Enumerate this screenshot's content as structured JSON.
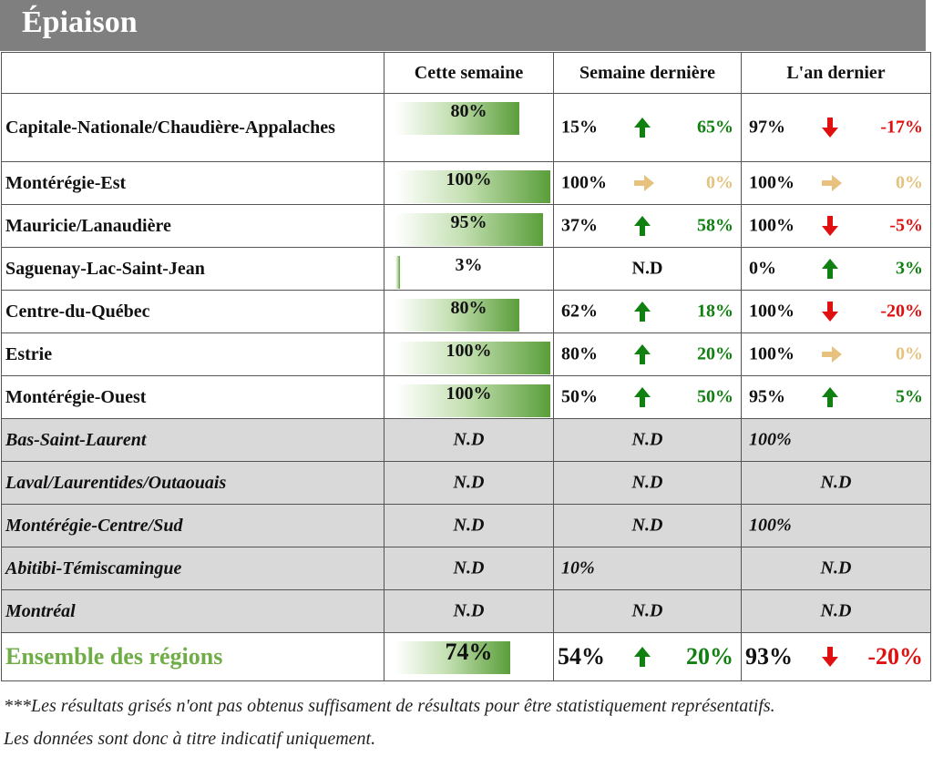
{
  "title": "Épiaison",
  "headers": [
    "Cette semaine",
    "Semaine dernière",
    "L'an dernier"
  ],
  "colors": {
    "up": "#108010",
    "down": "#e01010",
    "neutral": "#e7c27f",
    "total_label": "#70ad47",
    "grey_row": "#d9d9d9"
  },
  "rows": [
    {
      "region": "Capitale-Nationale/Chaudière-Appalaches",
      "cette": "80%",
      "cette_pct": 80,
      "sd_val": "15%",
      "sd_dir": "up",
      "sd_diff": "65%",
      "ad_val": "97%",
      "ad_dir": "down",
      "ad_diff": "-17%"
    },
    {
      "region": "Montérégie-Est",
      "cette": "100%",
      "cette_pct": 100,
      "sd_val": "100%",
      "sd_dir": "neutral",
      "sd_diff": "0%",
      "ad_val": "100%",
      "ad_dir": "neutral",
      "ad_diff": "0%"
    },
    {
      "region": "Mauricie/Lanaudière",
      "cette": "95%",
      "cette_pct": 95,
      "sd_val": "37%",
      "sd_dir": "up",
      "sd_diff": "58%",
      "ad_val": "100%",
      "ad_dir": "down",
      "ad_diff": "-5%"
    },
    {
      "region": "Saguenay-Lac-Saint-Jean",
      "cette": "3%",
      "cette_pct": 3,
      "sd_text": "N.D",
      "ad_val": "0%",
      "ad_dir": "up",
      "ad_diff": "3%"
    },
    {
      "region": "Centre-du-Québec",
      "cette": "80%",
      "cette_pct": 80,
      "sd_val": "62%",
      "sd_dir": "up",
      "sd_diff": "18%",
      "ad_val": "100%",
      "ad_dir": "down",
      "ad_diff": "-20%"
    },
    {
      "region": "Estrie",
      "cette": "100%",
      "cette_pct": 100,
      "sd_val": "80%",
      "sd_dir": "up",
      "sd_diff": "20%",
      "ad_val": "100%",
      "ad_dir": "neutral",
      "ad_diff": "0%"
    },
    {
      "region": "Montérégie-Ouest",
      "cette": "100%",
      "cette_pct": 100,
      "sd_val": "50%",
      "sd_dir": "up",
      "sd_diff": "50%",
      "ad_val": "95%",
      "ad_dir": "up",
      "ad_diff": "5%"
    }
  ],
  "grey_rows": [
    {
      "region": "Bas-Saint-Laurent",
      "cette": "N.D",
      "sd": "N.D",
      "sd_align": "center",
      "ad": "100%",
      "ad_align": "left"
    },
    {
      "region": "Laval/Laurentides/Outaouais",
      "cette": "N.D",
      "sd": "N.D",
      "sd_align": "center",
      "ad": "N.D",
      "ad_align": "center"
    },
    {
      "region": "Montérégie-Centre/Sud",
      "cette": "N.D",
      "sd": "N.D",
      "sd_align": "center",
      "ad": "100%",
      "ad_align": "left"
    },
    {
      "region": "Abitibi-Témiscamingue",
      "cette": "N.D",
      "sd": "10%",
      "sd_align": "left",
      "ad": "N.D",
      "ad_align": "center"
    },
    {
      "region": "Montréal",
      "cette": "N.D",
      "sd": "N.D",
      "sd_align": "center",
      "ad": "N.D",
      "ad_align": "center"
    }
  ],
  "total": {
    "region": "Ensemble des régions",
    "cette": "74%",
    "cette_pct": 74,
    "sd_val": "54%",
    "sd_dir": "up",
    "sd_diff": "20%",
    "ad_val": "93%",
    "ad_dir": "down",
    "ad_diff": "-20%"
  },
  "footnote_line1": "***Les résultats grisés n'ont pas obtenus suffisament de résultats pour être statistiquement représentatifs.",
  "footnote_line2": "Les données sont donc à titre indicatif uniquement."
}
